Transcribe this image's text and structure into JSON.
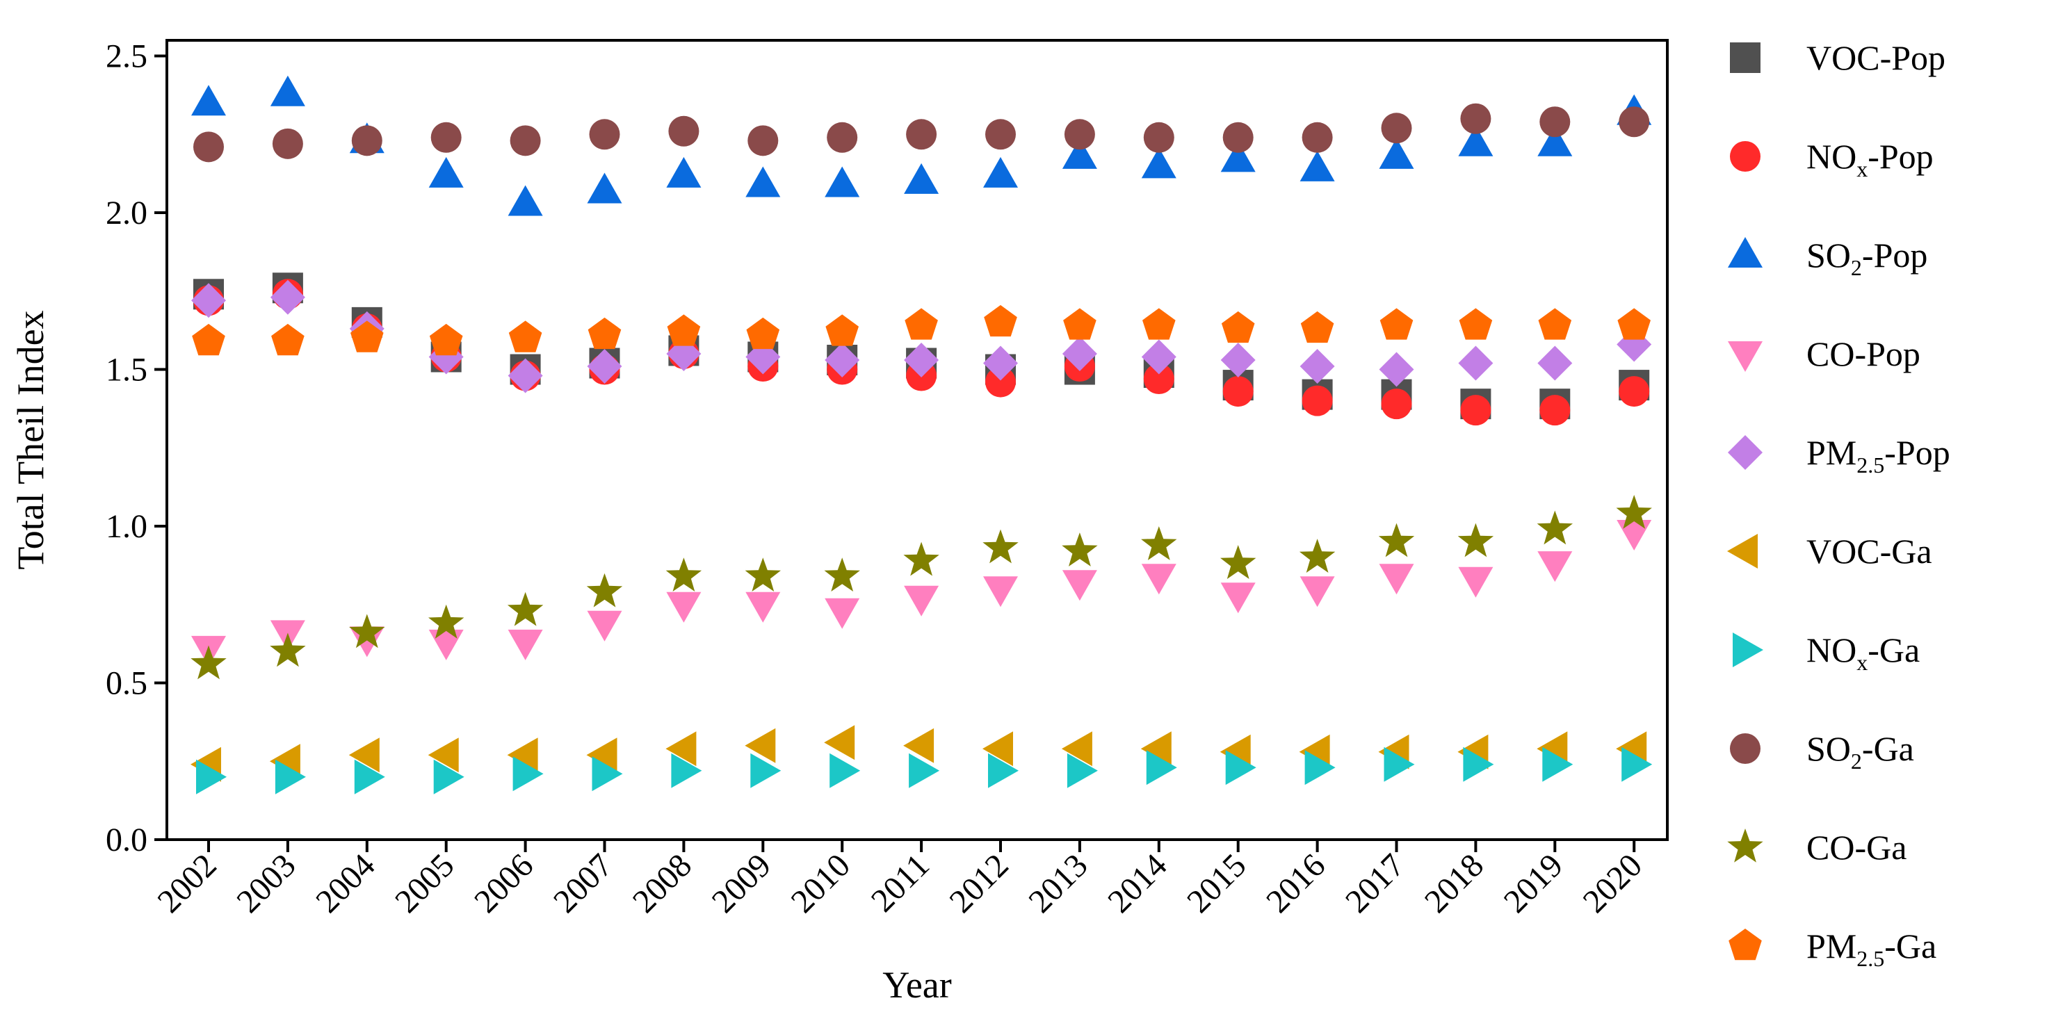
{
  "chart_data": {
    "type": "scatter",
    "title": "",
    "xlabel": "Year",
    "ylabel": "Total Theil Index",
    "ylim": [
      0.0,
      2.55
    ],
    "yticks": [
      "0.0",
      "0.5",
      "1.0",
      "1.5",
      "2.0",
      "2.5"
    ],
    "ytick_values": [
      0.0,
      0.5,
      1.0,
      1.5,
      2.0,
      2.5
    ],
    "categories": [
      "2002",
      "2003",
      "2004",
      "2005",
      "2006",
      "2007",
      "2008",
      "2009",
      "2010",
      "2011",
      "2012",
      "2013",
      "2014",
      "2015",
      "2016",
      "2017",
      "2018",
      "2019",
      "2020"
    ],
    "legend_position": "right",
    "series": [
      {
        "name": "VOC-Pop",
        "base": "VOC",
        "sub": "",
        "suffix": "-Pop",
        "marker": "square",
        "color": "#505050",
        "values": [
          1.74,
          1.76,
          1.65,
          1.54,
          1.5,
          1.52,
          1.56,
          1.54,
          1.53,
          1.52,
          1.5,
          1.5,
          1.49,
          1.45,
          1.42,
          1.42,
          1.39,
          1.39,
          1.45
        ]
      },
      {
        "name": "NOx-Pop",
        "base": "NO",
        "sub": "x",
        "suffix": "-Pop",
        "marker": "circle",
        "color": "#FF2A2A",
        "values": [
          1.72,
          1.74,
          1.63,
          1.54,
          1.48,
          1.5,
          1.55,
          1.51,
          1.5,
          1.48,
          1.46,
          1.51,
          1.47,
          1.43,
          1.4,
          1.39,
          1.37,
          1.37,
          1.43
        ]
      },
      {
        "name": "SO2-Pop",
        "base": "SO",
        "sub": "2",
        "suffix": "-Pop",
        "marker": "triangle-up",
        "color": "#0A6BDE",
        "values": [
          2.35,
          2.38,
          2.23,
          2.12,
          2.03,
          2.07,
          2.12,
          2.09,
          2.09,
          2.1,
          2.12,
          2.18,
          2.15,
          2.17,
          2.14,
          2.18,
          2.22,
          2.22,
          2.32
        ]
      },
      {
        "name": "CO-Pop",
        "base": "CO",
        "sub": "",
        "suffix": "-Pop",
        "marker": "triangle-down",
        "color": "#FF7FBF",
        "values": [
          0.61,
          0.66,
          0.64,
          0.63,
          0.63,
          0.69,
          0.75,
          0.75,
          0.73,
          0.77,
          0.8,
          0.82,
          0.84,
          0.78,
          0.8,
          0.84,
          0.83,
          0.88,
          0.98
        ]
      },
      {
        "name": "PM2.5-Pop",
        "base": "PM",
        "sub": "2.5",
        "suffix": "-Pop",
        "marker": "diamond",
        "color": "#C27FE6",
        "values": [
          1.72,
          1.73,
          1.63,
          1.54,
          1.48,
          1.51,
          1.55,
          1.54,
          1.53,
          1.53,
          1.52,
          1.55,
          1.54,
          1.53,
          1.51,
          1.5,
          1.52,
          1.52,
          1.58
        ]
      },
      {
        "name": "VOC-Ga",
        "base": "VOC",
        "sub": "",
        "suffix": "-Ga",
        "marker": "triangle-left",
        "color": "#D99A00",
        "values": [
          0.24,
          0.25,
          0.27,
          0.27,
          0.27,
          0.27,
          0.29,
          0.3,
          0.31,
          0.3,
          0.29,
          0.29,
          0.29,
          0.28,
          0.28,
          0.28,
          0.28,
          0.29,
          0.29
        ]
      },
      {
        "name": "NOx-Ga",
        "base": "NO",
        "sub": "x",
        "suffix": "-Ga",
        "marker": "triangle-right",
        "color": "#1CC7C7",
        "values": [
          0.2,
          0.2,
          0.2,
          0.2,
          0.21,
          0.21,
          0.22,
          0.22,
          0.22,
          0.22,
          0.22,
          0.22,
          0.23,
          0.23,
          0.23,
          0.24,
          0.24,
          0.24,
          0.24
        ]
      },
      {
        "name": "SO2-Ga",
        "base": "SO",
        "sub": "2",
        "suffix": "-Ga",
        "marker": "circle",
        "color": "#8A4A4A",
        "values": [
          2.21,
          2.22,
          2.23,
          2.24,
          2.23,
          2.25,
          2.26,
          2.23,
          2.24,
          2.25,
          2.25,
          2.25,
          2.24,
          2.24,
          2.24,
          2.27,
          2.3,
          2.29,
          2.29
        ]
      },
      {
        "name": "CO-Ga",
        "base": "CO",
        "sub": "",
        "suffix": "-Ga",
        "marker": "star",
        "color": "#808000",
        "values": [
          0.56,
          0.6,
          0.66,
          0.69,
          0.73,
          0.79,
          0.84,
          0.84,
          0.84,
          0.89,
          0.93,
          0.92,
          0.94,
          0.88,
          0.9,
          0.95,
          0.95,
          0.99,
          1.04
        ]
      },
      {
        "name": "PM2.5-Ga",
        "base": "PM",
        "sub": "2.5",
        "suffix": "-Ga",
        "marker": "pentagon",
        "color": "#FF6A00",
        "values": [
          1.59,
          1.59,
          1.6,
          1.59,
          1.6,
          1.61,
          1.62,
          1.61,
          1.62,
          1.64,
          1.65,
          1.64,
          1.64,
          1.63,
          1.63,
          1.64,
          1.64,
          1.64,
          1.64
        ]
      }
    ]
  }
}
